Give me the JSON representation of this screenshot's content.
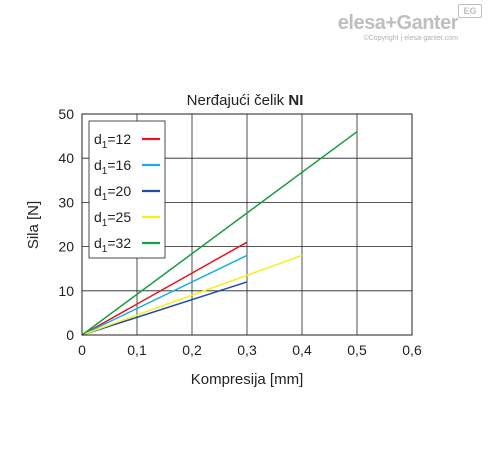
{
  "brand": {
    "logo_text": "elesa+Ganter",
    "copyright": "©Copyright | elesa-ganter.com",
    "badge": "EG"
  },
  "chart_data": {
    "type": "line",
    "title_prefix": "Nerđajući čelik ",
    "title_bold": "NI",
    "xlabel": "Kompresija [mm]",
    "ylabel": "Sila [N]",
    "xlim": [
      0,
      0.6
    ],
    "ylim": [
      0,
      50
    ],
    "xticks": [
      "0",
      "0,1",
      "0,2",
      "0,3",
      "0,4",
      "0,5",
      "0,6"
    ],
    "yticks": [
      "0",
      "10",
      "20",
      "30",
      "40",
      "50"
    ],
    "grid": true,
    "legend_position": "top-left",
    "series": [
      {
        "name": "d1=12",
        "label_main": "d",
        "label_sub": "1",
        "label_rest": "=12",
        "color": "#e8141b",
        "x": [
          0,
          0.3
        ],
        "y": [
          0,
          21
        ]
      },
      {
        "name": "d1=16",
        "label_main": "d",
        "label_sub": "1",
        "label_rest": "=16",
        "color": "#1aaee6",
        "x": [
          0,
          0.3
        ],
        "y": [
          0,
          18
        ]
      },
      {
        "name": "d1=20",
        "label_main": "d",
        "label_sub": "1",
        "label_rest": "=20",
        "color": "#1d4f9e",
        "x": [
          0,
          0.3
        ],
        "y": [
          0,
          12
        ]
      },
      {
        "name": "d1=25",
        "label_main": "d",
        "label_sub": "1",
        "label_rest": "=25",
        "color": "#f7ee1e",
        "x": [
          0,
          0.4
        ],
        "y": [
          0,
          18
        ]
      },
      {
        "name": "d1=32",
        "label_main": "d",
        "label_sub": "1",
        "label_rest": "=32",
        "color": "#169d40",
        "x": [
          0,
          0.5
        ],
        "y": [
          0,
          46
        ]
      }
    ]
  }
}
